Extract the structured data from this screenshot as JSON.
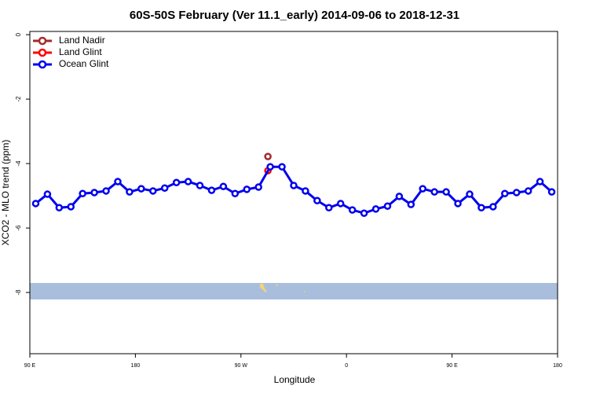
{
  "chart_data": {
    "type": "line",
    "title": "60S-50S February (Ver 11.1_early)   2014-09-06 to 2018-12-31",
    "xlabel": "Longitude",
    "ylabel": "XCO2 - MLO trend (ppm)",
    "xlim": [
      90,
      540
    ],
    "ylim": [
      -9.9,
      0.1
    ],
    "xticks": [
      {
        "value": 90,
        "label": "90 E"
      },
      180,
      {
        "value": 270,
        "label": "90 W"
      },
      {
        "value": 360,
        "label": "0"
      },
      {
        "value": 450,
        "label": "90 E"
      },
      {
        "value": 540,
        "label": "180"
      }
    ],
    "yticks": [
      0,
      -2,
      -4,
      -6,
      -8
    ],
    "legend": "top-left",
    "series": [
      {
        "name": "Land Nadir",
        "color": "#a52a2a",
        "x": [
          293
        ],
        "values": [
          -3.78
        ]
      },
      {
        "name": "Land Glint",
        "color": "#ff0000",
        "x": [
          293
        ],
        "values": [
          -4.22
        ]
      },
      {
        "name": "Ocean Glint",
        "color": "#0000ee",
        "x": [
          95,
          105,
          115,
          125,
          135,
          145,
          155,
          165,
          175,
          185,
          195,
          205,
          215,
          225,
          235,
          245,
          255,
          265,
          275,
          285,
          295,
          305,
          315,
          325,
          335,
          345,
          355,
          365,
          375,
          385,
          395,
          405,
          415,
          425,
          435,
          445,
          455,
          465,
          475,
          485,
          495,
          505,
          515,
          525,
          535
        ],
        "values": [
          -5.24,
          -4.95,
          -5.37,
          -5.34,
          -4.93,
          -4.9,
          -4.85,
          -4.56,
          -4.88,
          -4.78,
          -4.85,
          -4.76,
          -4.59,
          -4.56,
          -4.68,
          -4.83,
          -4.71,
          -4.93,
          -4.8,
          -4.73,
          -4.1,
          -4.1,
          -4.68,
          -4.85,
          -5.15,
          -5.37,
          -5.24,
          -5.44,
          -5.54,
          -5.41,
          -5.32,
          -5.02,
          -5.27,
          -4.78,
          -4.88,
          -4.88,
          -5.24,
          -4.95,
          -5.37,
          -5.34,
          -4.93,
          -4.9,
          -4.85,
          -4.56,
          -4.88
        ]
      }
    ]
  }
}
